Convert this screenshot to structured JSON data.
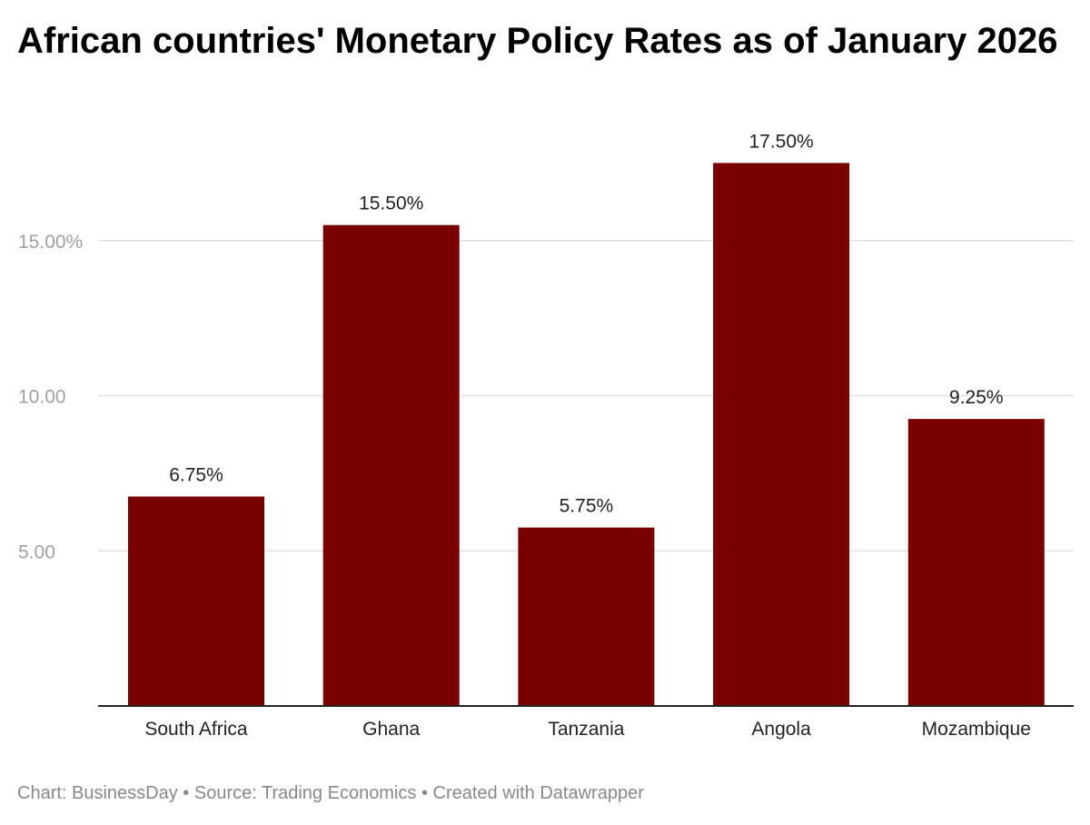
{
  "chart_data": {
    "type": "bar",
    "title": "African countries' Monetary Policy Rates as of January 2026",
    "categories": [
      "South Africa",
      "Ghana",
      "Tanzania",
      "Angola",
      "Mozambique"
    ],
    "values": [
      6.75,
      15.5,
      5.75,
      17.5,
      9.25
    ],
    "data_labels": [
      "6.75%",
      "15.50%",
      "5.75%",
      "17.50%",
      "9.25%"
    ],
    "yticks": [
      5,
      10,
      15
    ],
    "ytick_labels": [
      "5.00",
      "10.00",
      "15.00%"
    ],
    "ylim": [
      0,
      18
    ],
    "xlabel": "",
    "ylabel": "",
    "grid": true,
    "colors": {
      "bar": "#7a0000",
      "grid": "#e0e0e0",
      "axis": "#222222",
      "tick_label": "#a0a0a0"
    }
  },
  "footer": "Chart: BusinessDay • Source: Trading Economics • Created with Datawrapper"
}
